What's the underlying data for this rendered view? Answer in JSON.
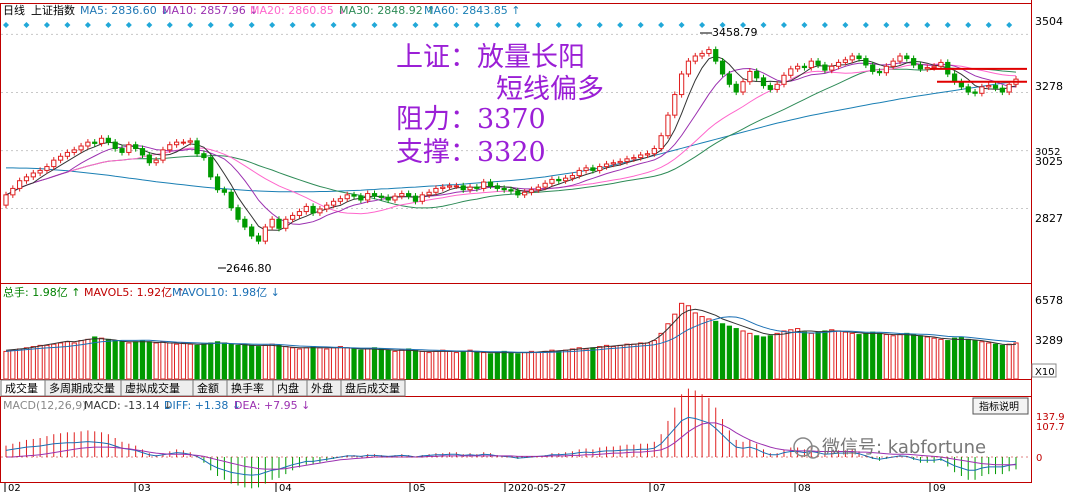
{
  "header": {
    "period": "日线",
    "index_name": "上证指数",
    "ma_items": [
      {
        "label": "MA5: 2836.60",
        "arrow": "↓",
        "color": "#1f77b4"
      },
      {
        "label": "MA10: 2857.96",
        "arrow": "↓",
        "color": "#9b30b0"
      },
      {
        "label": "MA20: 2860.85",
        "arrow": "↓",
        "color": "#ff66cc"
      },
      {
        "label": "MA30: 2848.92",
        "arrow": "↑",
        "color": "#2e8b57"
      },
      {
        "label": "MA60: 2843.85",
        "arrow": "↑",
        "color": "#1a7fb4"
      }
    ]
  },
  "annotation": {
    "line1": "上证：放量长阳",
    "line2": "短线偏多",
    "line3": "阻力：3370",
    "line4": "支撑：3320",
    "color": "#9b1fd6"
  },
  "price_axis": {
    "ticks": [
      "3504",
      "3278",
      "3052",
      "3025",
      "2827"
    ]
  },
  "extremes": {
    "high_label": "3458.79",
    "low_label": "2646.80"
  },
  "volume_header": {
    "items": [
      {
        "label": "总手: 1.98亿",
        "arrow": "↑",
        "color": "#008000"
      },
      {
        "label": "MAVOL5: 1.92亿",
        "arrow": "↑",
        "color": "#c00000"
      },
      {
        "label": "MAVOL10: 1.98亿",
        "arrow": "↓",
        "color": "#1a6fb4"
      }
    ]
  },
  "volume_axis": {
    "ticks": [
      "6578",
      "3289"
    ],
    "unit": "X10"
  },
  "tabs": [
    "成交量",
    "多周期成交量",
    "虚拟成交量",
    "金额",
    "换手率",
    "内盘",
    "外盘",
    "盘后成交量"
  ],
  "macd_header": {
    "items": [
      {
        "label": "MACD(12,26,9)",
        "arrow": "",
        "color": "#888888"
      },
      {
        "label": "MACD: -13.14",
        "arrow": "↓",
        "color": "#333333"
      },
      {
        "label": "DIFF: +1.38",
        "arrow": "↓",
        "color": "#1a6fb4"
      },
      {
        "label": "DEA: +7.95",
        "arrow": "↓",
        "color": "#9b30b0"
      }
    ]
  },
  "indicator_button": "指标说明",
  "macd_axis": {
    "ticks": [
      "137.9",
      "107.7",
      "0"
    ]
  },
  "watermark": "微信号: kabfortune",
  "date_axis": {
    "labels": [
      "02",
      "03",
      "04",
      "05",
      "2020-05-27",
      "07",
      "08",
      "09"
    ]
  },
  "colors": {
    "up": "#e02020",
    "down": "#009a00",
    "axis": "#c00000",
    "bg": "#ffffff",
    "signal": "#21a8d8"
  },
  "chart_data": {
    "type": "candlestick",
    "ylim": [
      2580,
      3560
    ],
    "closes": [
      2880,
      2905,
      2935,
      2950,
      2965,
      2975,
      2990,
      3015,
      3030,
      3045,
      3055,
      3070,
      3085,
      3080,
      3100,
      3085,
      3060,
      3045,
      3075,
      3060,
      3035,
      3005,
      3015,
      3055,
      3075,
      3085,
      3085,
      3090,
      3040,
      3025,
      2950,
      2900,
      2890,
      2830,
      2785,
      2755,
      2720,
      2700,
      2755,
      2785,
      2750,
      2785,
      2800,
      2815,
      2835,
      2810,
      2825,
      2840,
      2855,
      2865,
      2880,
      2875,
      2860,
      2885,
      2875,
      2870,
      2860,
      2875,
      2885,
      2875,
      2855,
      2880,
      2890,
      2905,
      2910,
      2915,
      2915,
      2900,
      2910,
      2905,
      2930,
      2915,
      2905,
      2900,
      2895,
      2880,
      2890,
      2900,
      2910,
      2925,
      2940,
      2935,
      2945,
      2955,
      2975,
      2985,
      2975,
      2990,
      3000,
      3005,
      3010,
      3020,
      3025,
      3035,
      3040,
      3060,
      3110,
      3190,
      3270,
      3350,
      3400,
      3420,
      3430,
      3445,
      3400,
      3350,
      3310,
      3280,
      3320,
      3360,
      3335,
      3305,
      3290,
      3310,
      3345,
      3370,
      3380,
      3375,
      3400,
      3385,
      3365,
      3380,
      3395,
      3405,
      3420,
      3410,
      3385,
      3360,
      3355,
      3380,
      3400,
      3420,
      3410,
      3385,
      3370,
      3375,
      3380,
      3395,
      3350,
      3320,
      3300,
      3280,
      3275,
      3300,
      3305,
      3295,
      3280,
      3310,
      3330
    ],
    "ma60": [
      2985,
      2985,
      2984,
      2984,
      2983,
      2982,
      2980,
      2978,
      2976,
      2974,
      2971,
      2968,
      2965,
      2962,
      2959,
      2956,
      2952,
      2949,
      2945,
      2942,
      2938,
      2935,
      2931,
      2928,
      2925,
      2922,
      2919,
      2916,
      2913,
      2910,
      2908,
      2906,
      2904,
      2902,
      2900,
      2898,
      2896,
      2895,
      2894,
      2893,
      2892,
      2892,
      2892,
      2892,
      2892,
      2892,
      2893,
      2893,
      2894,
      2895,
      2896,
      2897,
      2898,
      2900,
      2901,
      2903,
      2904,
      2906,
      2907,
      2909,
      2910,
      2912,
      2914,
      2915,
      2917,
      2919,
      2920,
      2922,
      2924,
      2926,
      2928,
      2930,
      2932,
      2934,
      2936,
      2938,
      2941,
      2944,
      2947,
      2950,
      2954,
      2958,
      2962,
      2966,
      2970,
      2975,
      2980,
      2985,
      2990,
      2996,
      3002,
      3008,
      3014,
      3020,
      3026,
      3033,
      3040,
      3047,
      3054,
      3061,
      3068,
      3075,
      3082,
      3089,
      3096,
      3103,
      3110,
      3117,
      3124,
      3131,
      3138,
      3145,
      3152,
      3159,
      3165,
      3171,
      3177,
      3183,
      3189,
      3194,
      3199,
      3204,
      3209,
      3214,
      3219,
      3224,
      3229,
      3234,
      3238,
      3243,
      3248,
      3253,
      3257,
      3262,
      3266,
      3270,
      3274,
      3278,
      3282,
      3286,
      3290,
      3294,
      3298,
      3302,
      3306,
      3310,
      3314,
      3318,
      3321
    ],
    "volumes": [
      2300,
      2400,
      2500,
      2600,
      2700,
      2800,
      2800,
      2900,
      3000,
      3100,
      3000,
      3200,
      3300,
      3500,
      3400,
      3300,
      3200,
      3100,
      3000,
      3100,
      3200,
      3100,
      3000,
      3100,
      3000,
      2900,
      3000,
      2900,
      2800,
      2900,
      3000,
      3100,
      3000,
      2900,
      2800,
      2900,
      2800,
      2700,
      2800,
      2900,
      2800,
      2700,
      2600,
      2500,
      2600,
      2700,
      2600,
      2500,
      2600,
      2700,
      2600,
      2500,
      2400,
      2500,
      2600,
      2500,
      2400,
      2300,
      2400,
      2500,
      2400,
      2300,
      2200,
      2300,
      2400,
      2300,
      2200,
      2300,
      2400,
      2300,
      2200,
      2100,
      2200,
      2300,
      2200,
      2100,
      2200,
      2300,
      2200,
      2300,
      2400,
      2300,
      2400,
      2500,
      2600,
      2500,
      2600,
      2700,
      2800,
      2700,
      2800,
      2900,
      2900,
      3000,
      3000,
      3200,
      3800,
      4600,
      5400,
      6300,
      6100,
      5500,
      5200,
      5000,
      4800,
      4600,
      4400,
      4200,
      4000,
      3800,
      3600,
      3500,
      3600,
      3800,
      4000,
      4100,
      4200,
      3900,
      3800,
      3900,
      4000,
      4100,
      4000,
      3900,
      3800,
      3700,
      3800,
      3900,
      3800,
      3700,
      3600,
      3700,
      3800,
      3700,
      3600,
      3500,
      3400,
      3300,
      3200,
      3400,
      3500,
      3300,
      3200,
      3100,
      3000,
      2900,
      2800,
      2900,
      3000
    ],
    "mavol5": [
      2400,
      2450,
      2500,
      2550,
      2650,
      2750,
      2850,
      2950,
      3050,
      3150,
      3100,
      3200,
      3300,
      3350,
      3350,
      3300,
      3250,
      3150,
      3100,
      3100,
      3100,
      3100,
      3050,
      3050,
      3000,
      3000,
      2950,
      2950,
      2900,
      2900,
      2950,
      3000,
      3000,
      2950,
      2900,
      2850,
      2800,
      2800,
      2800,
      2800,
      2750,
      2700,
      2650,
      2600,
      2600,
      2600,
      2600,
      2600,
      2600,
      2600,
      2600,
      2550,
      2500,
      2500,
      2500,
      2450,
      2450,
      2400,
      2400,
      2400,
      2350,
      2300,
      2300,
      2300,
      2300,
      2300,
      2300,
      2300,
      2300,
      2250,
      2250,
      2200,
      2200,
      2200,
      2200,
      2200,
      2200,
      2200,
      2250,
      2300,
      2300,
      2350,
      2400,
      2450,
      2500,
      2550,
      2600,
      2650,
      2700,
      2750,
      2800,
      2850,
      2900,
      2950,
      3000,
      3250,
      3650,
      4200,
      4800,
      5400,
      5700,
      5800,
      5700,
      5500,
      5300,
      5000,
      4800,
      4600,
      4400,
      4200,
      4000,
      3800,
      3700,
      3700,
      3750,
      3850,
      3950,
      4000,
      4000,
      3950,
      3950,
      4000,
      4000,
      3950,
      3900,
      3850,
      3800,
      3800,
      3800,
      3750,
      3700,
      3700,
      3700,
      3650,
      3600,
      3550,
      3500,
      3400,
      3350,
      3300,
      3300,
      3300,
      3250,
      3200,
      3100,
      3000,
      2900,
      2850,
      2900
    ],
    "macd": [
      12,
      14,
      16,
      18,
      19,
      20,
      22,
      24,
      25,
      26,
      26,
      27,
      28,
      27,
      26,
      24,
      20,
      16,
      14,
      12,
      8,
      4,
      2,
      4,
      6,
      8,
      7,
      5,
      1,
      -6,
      -14,
      -20,
      -24,
      -28,
      -30,
      -32,
      -33,
      -32,
      -28,
      -24,
      -22,
      -18,
      -14,
      -11,
      -8,
      -8,
      -6,
      -4,
      -2,
      0,
      2,
      2,
      1,
      3,
      3,
      2,
      1,
      2,
      3,
      2,
      0,
      2,
      3,
      4,
      4,
      5,
      5,
      3,
      4,
      3,
      5,
      4,
      2,
      1,
      0,
      -2,
      -1,
      0,
      1,
      2,
      4,
      4,
      5,
      6,
      8,
      9,
      8,
      10,
      11,
      11,
      12,
      13,
      13,
      14,
      14,
      16,
      24,
      38,
      52,
      66,
      72,
      70,
      66,
      62,
      52,
      40,
      28,
      18,
      16,
      18,
      14,
      8,
      4,
      4,
      8,
      10,
      10,
      8,
      10,
      8,
      5,
      6,
      7,
      7,
      8,
      6,
      2,
      -2,
      -4,
      -2,
      0,
      2,
      1,
      -3,
      -6,
      -6,
      -6,
      -4,
      -10,
      -16,
      -20,
      -24,
      -24,
      -20,
      -18,
      -18,
      -18,
      -15,
      -13
    ],
    "signal": [
      0,
      0,
      1,
      2,
      3,
      4,
      6,
      8,
      10,
      12,
      14,
      16,
      17,
      18,
      18,
      18,
      17,
      16,
      15,
      13,
      11,
      9,
      7,
      6,
      5,
      5,
      5,
      4,
      3,
      1,
      -2,
      -5,
      -8,
      -11,
      -14,
      -17,
      -19,
      -21,
      -22,
      -22,
      -22,
      -21,
      -19,
      -17,
      -15,
      -13,
      -11,
      -9,
      -7,
      -5,
      -4,
      -3,
      -2,
      -1,
      0,
      0,
      0,
      0,
      0,
      0,
      0,
      0,
      1,
      1,
      2,
      2,
      2,
      2,
      2,
      2,
      2,
      2,
      2,
      2,
      2,
      1,
      1,
      1,
      1,
      1,
      2,
      2,
      2,
      3,
      3,
      4,
      4,
      5,
      6,
      7,
      7,
      8,
      9,
      9,
      10,
      11,
      13,
      18,
      26,
      36,
      46,
      54,
      60,
      62,
      62,
      58,
      52,
      44,
      37,
      31,
      26,
      22,
      18,
      15,
      13,
      12,
      11,
      11,
      11,
      10,
      10,
      10,
      10,
      10,
      10,
      9,
      9,
      8,
      7,
      6,
      5,
      5,
      5,
      4,
      3,
      2,
      1,
      0,
      -2,
      -4,
      -6,
      -8,
      -10,
      -12,
      -13,
      -14,
      -14,
      -14,
      -14
    ]
  }
}
